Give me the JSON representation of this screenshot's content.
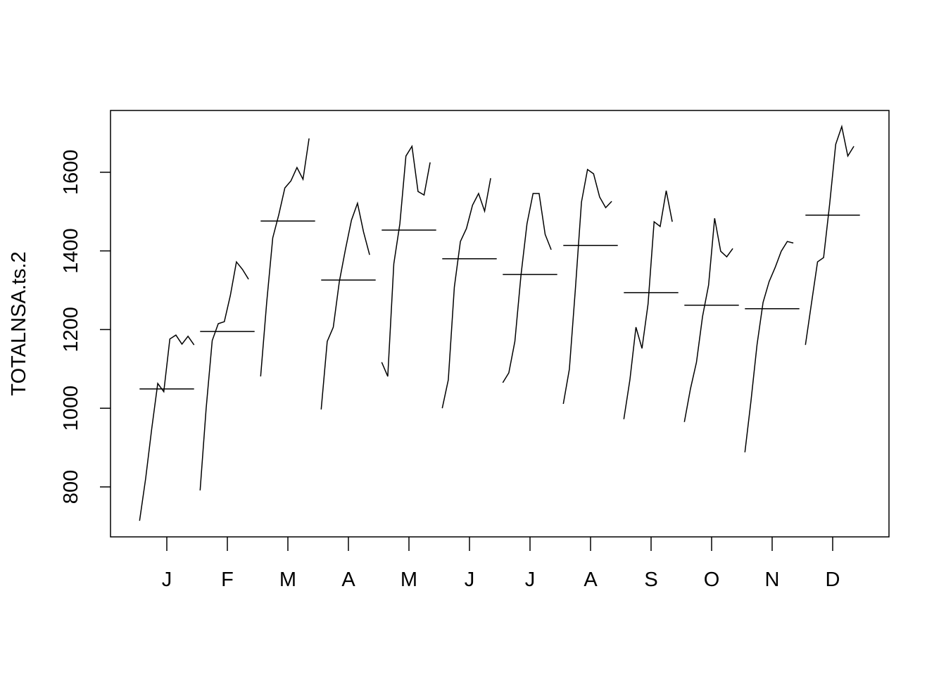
{
  "chart_data": {
    "type": "monthplot",
    "ylabel": "TOTALNSA.ts.2",
    "categories": [
      "J",
      "F",
      "M",
      "A",
      "M",
      "J",
      "J",
      "A",
      "S",
      "O",
      "N",
      "D"
    ],
    "values": [
      [
        714,
        821,
        947,
        1063,
        1042,
        1176,
        1186,
        1163,
        1183,
        1161
      ],
      [
        791,
        1000,
        1172,
        1215,
        1220,
        1287,
        1372,
        1353,
        1328
      ],
      [
        1081,
        1269,
        1433,
        1492,
        1560,
        1578,
        1612,
        1582,
        1686
      ],
      [
        997,
        1170,
        1206,
        1322,
        1403,
        1478,
        1521,
        1448,
        1390
      ],
      [
        1117,
        1081,
        1367,
        1469,
        1641,
        1666,
        1551,
        1542,
        1625
      ],
      [
        1000,
        1072,
        1308,
        1424,
        1457,
        1516,
        1546,
        1501,
        1585
      ],
      [
        1065,
        1090,
        1170,
        1337,
        1469,
        1546,
        1546,
        1442,
        1403
      ],
      [
        1011,
        1099,
        1304,
        1524,
        1607,
        1596,
        1537,
        1510,
        1526
      ],
      [
        972,
        1072,
        1206,
        1152,
        1265,
        1474,
        1462,
        1553,
        1474
      ],
      [
        965,
        1049,
        1117,
        1233,
        1313,
        1483,
        1399,
        1385,
        1406
      ],
      [
        888,
        1018,
        1161,
        1269,
        1322,
        1358,
        1399,
        1424,
        1420
      ],
      [
        1161,
        1267,
        1372,
        1383,
        1519,
        1671,
        1716,
        1641,
        1666
      ]
    ],
    "means": [
      1049,
      1195,
      1476,
      1326,
      1453,
      1380,
      1340,
      1414,
      1294,
      1262,
      1253,
      1491
    ],
    "color": "#000000",
    "ylim": [
      673,
      1757
    ],
    "yticks": [
      800,
      1000,
      1200,
      1400,
      1600
    ]
  }
}
